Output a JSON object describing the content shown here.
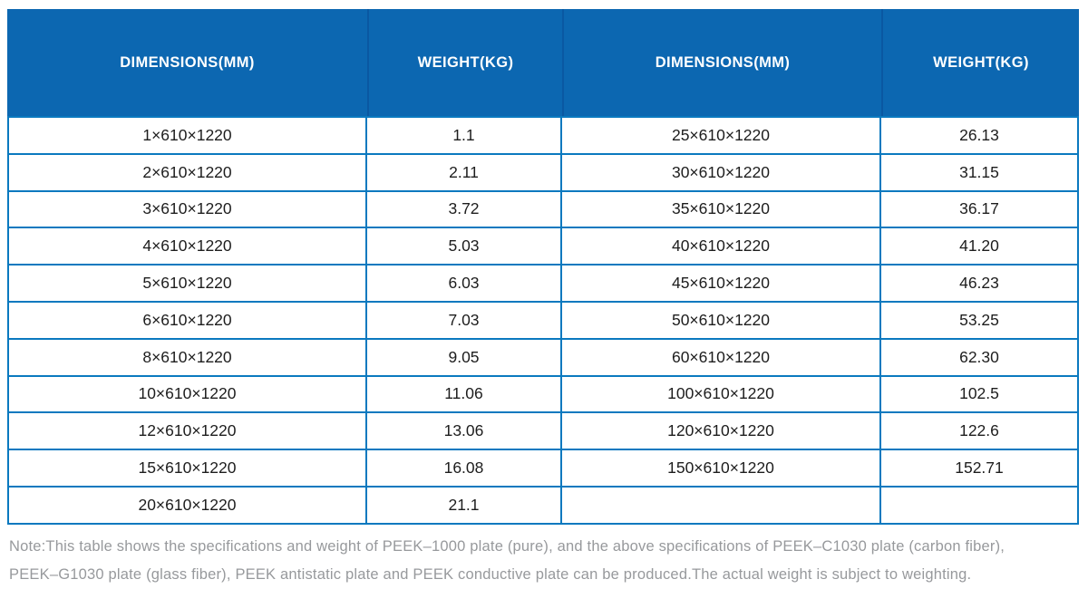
{
  "colors": {
    "header_bg": "#0c67b1",
    "header_divider": "#0a58a2",
    "grid_border": "#0a79bf",
    "body_text": "#1d1d1d",
    "note_text": "#97999c",
    "page_bg": "#ffffff"
  },
  "table": {
    "headers": [
      "DIMENSIONS(MM)",
      "WEIGHT(KG)",
      "DIMENSIONS(MM)",
      "WEIGHT(KG)"
    ],
    "rows": [
      [
        "1×610×1220",
        "1.1",
        "25×610×1220",
        "26.13"
      ],
      [
        "2×610×1220",
        "2.11",
        "30×610×1220",
        "31.15"
      ],
      [
        "3×610×1220",
        "3.72",
        "35×610×1220",
        "36.17"
      ],
      [
        "4×610×1220",
        "5.03",
        "40×610×1220",
        "41.20"
      ],
      [
        "5×610×1220",
        "6.03",
        "45×610×1220",
        "46.23"
      ],
      [
        "6×610×1220",
        "7.03",
        "50×610×1220",
        "53.25"
      ],
      [
        "8×610×1220",
        "9.05",
        "60×610×1220",
        "62.30"
      ],
      [
        "10×610×1220",
        "11.06",
        "100×610×1220",
        "102.5"
      ],
      [
        "12×610×1220",
        "13.06",
        "120×610×1220",
        "122.6"
      ],
      [
        "15×610×1220",
        "16.08",
        "150×610×1220",
        "152.71"
      ],
      [
        "20×610×1220",
        "21.1",
        "",
        ""
      ]
    ]
  },
  "note": {
    "line1": "Note:This table shows the specifications and weight of PEEK–1000 plate (pure), and the above specifications of PEEK–C1030 plate (carbon fiber),",
    "line2": "PEEK–G1030 plate (glass fiber), PEEK antistatic plate and PEEK conductive plate can be produced.The actual weight is subject to weighting."
  }
}
